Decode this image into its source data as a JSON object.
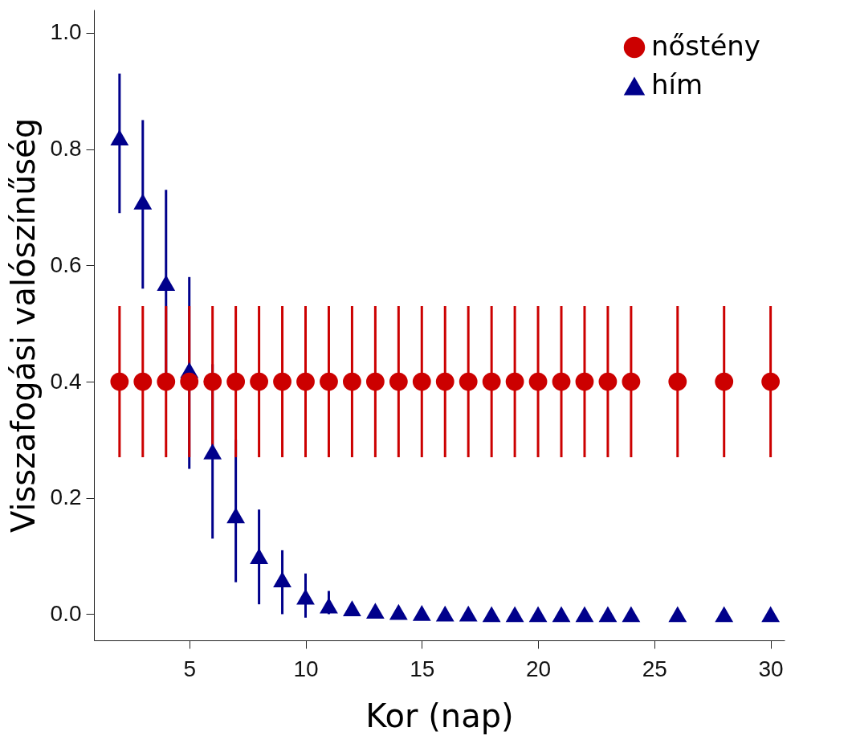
{
  "chart_data": {
    "type": "scatter",
    "xlabel": "Kor (nap)",
    "ylabel": "Visszafogási valószínűség",
    "x": [
      2,
      3,
      4,
      5,
      6,
      7,
      8,
      9,
      10,
      11,
      12,
      13,
      14,
      15,
      16,
      17,
      18,
      19,
      20,
      21,
      22,
      23,
      24,
      26,
      28,
      30
    ],
    "series": [
      {
        "name": "nőstény",
        "color": "#cc0000",
        "marker": "circle",
        "values": [
          0.4,
          0.4,
          0.4,
          0.4,
          0.4,
          0.4,
          0.4,
          0.4,
          0.4,
          0.4,
          0.4,
          0.4,
          0.4,
          0.4,
          0.4,
          0.4,
          0.4,
          0.4,
          0.4,
          0.4,
          0.4,
          0.4,
          0.4,
          0.4,
          0.4,
          0.4
        ],
        "errors": [
          [
            0.27,
            0.53
          ],
          [
            0.27,
            0.53
          ],
          [
            0.27,
            0.53
          ],
          [
            0.27,
            0.53
          ],
          [
            0.27,
            0.53
          ],
          [
            0.27,
            0.53
          ],
          [
            0.27,
            0.53
          ],
          [
            0.27,
            0.53
          ],
          [
            0.27,
            0.53
          ],
          [
            0.27,
            0.53
          ],
          [
            0.27,
            0.53
          ],
          [
            0.27,
            0.53
          ],
          [
            0.27,
            0.53
          ],
          [
            0.27,
            0.53
          ],
          [
            0.27,
            0.53
          ],
          [
            0.27,
            0.53
          ],
          [
            0.27,
            0.53
          ],
          [
            0.27,
            0.53
          ],
          [
            0.27,
            0.53
          ],
          [
            0.27,
            0.53
          ],
          [
            0.27,
            0.53
          ],
          [
            0.27,
            0.53
          ],
          [
            0.27,
            0.53
          ],
          [
            0.27,
            0.53
          ],
          [
            0.27,
            0.53
          ],
          [
            0.27,
            0.53
          ]
        ]
      },
      {
        "name": "hím",
        "color": "#00008b",
        "marker": "triangle",
        "values": [
          0.82,
          0.71,
          0.57,
          0.42,
          0.28,
          0.17,
          0.1,
          0.06,
          0.03,
          0.015,
          0.01,
          0.006,
          0.004,
          0.002,
          0.001,
          0.001,
          0,
          0,
          0,
          0,
          0,
          0,
          0,
          0,
          0,
          0
        ],
        "errors": [
          [
            0.69,
            0.93
          ],
          [
            0.56,
            0.85
          ],
          [
            0.41,
            0.73
          ],
          [
            0.25,
            0.58
          ],
          [
            0.13,
            0.43
          ],
          [
            0.055,
            0.3
          ],
          [
            0.017,
            0.18
          ],
          [
            0,
            0.11
          ],
          [
            -0.006,
            0.07
          ],
          [
            0,
            0.04
          ],
          null,
          null,
          null,
          null,
          null,
          null,
          null,
          null,
          null,
          null,
          null,
          null,
          null,
          null,
          null,
          null
        ]
      }
    ],
    "xlim": [
      0.9,
      30.6
    ],
    "ylim": [
      -0.045,
      1.04
    ],
    "xticks": [
      5,
      10,
      15,
      20,
      25,
      30
    ],
    "yticks": [
      {
        "value": 0,
        "label": "0.0"
      },
      0.2,
      0.4,
      0.6,
      0.8,
      {
        "value": 1,
        "label": "1.0"
      }
    ],
    "legend": "top right"
  }
}
